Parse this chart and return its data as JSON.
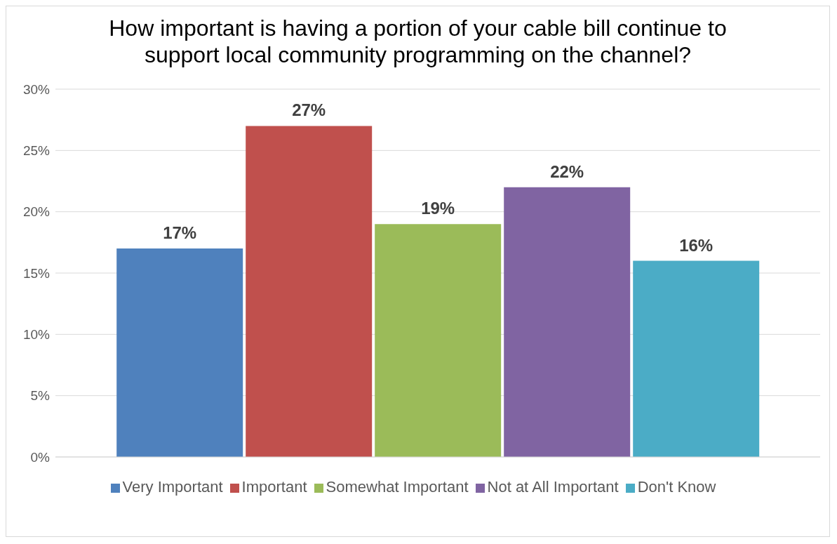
{
  "chart_data": {
    "type": "bar",
    "title": "How important is having a portion of your cable bill continue to support local community programming on the channel?",
    "categories": [
      null
    ],
    "series": [
      {
        "name": "Very Important",
        "color": "#4f81bd",
        "values": [
          17
        ],
        "value_labels": [
          "17%"
        ]
      },
      {
        "name": "Important",
        "color": "#c0504d",
        "values": [
          27
        ],
        "value_labels": [
          "27%"
        ]
      },
      {
        "name": "Somewhat Important",
        "color": "#9bbb59",
        "values": [
          19
        ],
        "value_labels": [
          "19%"
        ]
      },
      {
        "name": "Not at All Important",
        "color": "#8064a2",
        "values": [
          22
        ],
        "value_labels": [
          "22%"
        ]
      },
      {
        "name": "Don't Know",
        "color": "#4bacc6",
        "values": [
          16
        ],
        "value_labels": [
          "16%"
        ]
      }
    ],
    "ylim": [
      0,
      30
    ],
    "yticks": [
      {
        "value": 0,
        "label": "0%"
      },
      {
        "value": 5,
        "label": "5%"
      },
      {
        "value": 10,
        "label": "10%"
      },
      {
        "value": 15,
        "label": "15%"
      },
      {
        "value": 20,
        "label": "20%"
      },
      {
        "value": 25,
        "label": "25%"
      },
      {
        "value": 30,
        "label": "30%"
      }
    ],
    "grid": "y",
    "legend": "bottom"
  }
}
